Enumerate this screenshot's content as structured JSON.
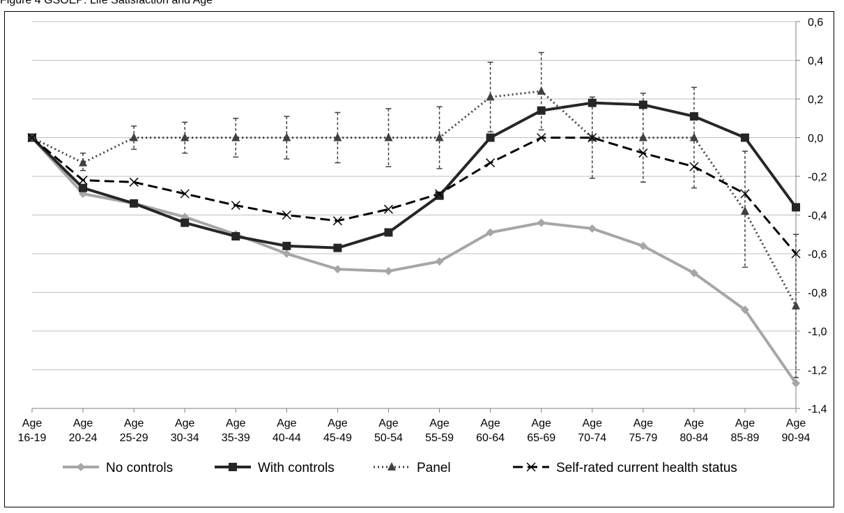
{
  "caption": "Figure 4 GSOEP: Life Satisfaction and Age",
  "chart_data": {
    "type": "line",
    "title": "",
    "xlabel": "",
    "ylabel": "",
    "y_axis_side": "right",
    "ylim": [
      -1.4,
      0.6
    ],
    "yticks": [
      "0,6",
      "0,4",
      "0,2",
      "0,0",
      "-0,2",
      "-0,4",
      "-0,6",
      "-0,8",
      "-1,0",
      "-1,2",
      "-1,4"
    ],
    "ytick_values": [
      0.6,
      0.4,
      0.2,
      0.0,
      -0.2,
      -0.4,
      -0.6,
      -0.8,
      -1.0,
      -1.2,
      -1.4
    ],
    "grid": true,
    "legend_position": "bottom",
    "categories": [
      [
        "Age",
        "16-19"
      ],
      [
        "Age",
        "20-24"
      ],
      [
        "Age",
        "25-29"
      ],
      [
        "Age",
        "30-34"
      ],
      [
        "Age",
        "35-39"
      ],
      [
        "Age",
        "40-44"
      ],
      [
        "Age",
        "45-49"
      ],
      [
        "Age",
        "50-54"
      ],
      [
        "Age",
        "55-59"
      ],
      [
        "Age",
        "60-64"
      ],
      [
        "Age",
        "65-69"
      ],
      [
        "Age",
        "70-74"
      ],
      [
        "Age",
        "75-79"
      ],
      [
        "Age",
        "80-84"
      ],
      [
        "Age",
        "85-89"
      ],
      [
        "Age",
        "90-94"
      ]
    ],
    "series": [
      {
        "name": "No controls",
        "marker": "diamond",
        "color": "#a6a6a6",
        "dash": "solid",
        "values": [
          0,
          -0.29,
          -0.34,
          -0.41,
          -0.5,
          -0.6,
          -0.68,
          -0.69,
          -0.64,
          -0.49,
          -0.44,
          -0.47,
          -0.56,
          -0.7,
          -0.89,
          -1.27
        ]
      },
      {
        "name": "With controls",
        "marker": "square",
        "color": "#262626",
        "dash": "solid",
        "values": [
          0,
          -0.26,
          -0.34,
          -0.44,
          -0.51,
          -0.56,
          -0.57,
          -0.49,
          -0.3,
          0,
          0.14,
          0.18,
          0.17,
          0.11,
          0,
          -0.36
        ]
      },
      {
        "name": "Panel",
        "marker": "triangle",
        "color": "#404040",
        "dash": "dotted",
        "values": [
          0,
          -0.13,
          0,
          0,
          0,
          0,
          0,
          0,
          0,
          0.21,
          0.24,
          0,
          0,
          0,
          -0.38,
          -0.87
        ],
        "error_high": [
          0,
          -0.08,
          0.06,
          0.08,
          0.1,
          0.11,
          0.13,
          0.15,
          0.16,
          0.39,
          0.44,
          0.21,
          0.23,
          0.26,
          -0.07,
          -0.5
        ],
        "error_low": [
          0,
          -0.17,
          -0.06,
          -0.08,
          -0.1,
          -0.11,
          -0.13,
          -0.15,
          -0.16,
          0.03,
          0.04,
          -0.21,
          -0.23,
          -0.26,
          -0.67,
          -1.24
        ]
      },
      {
        "name": "Self-rated current health status",
        "marker": "x",
        "color": "#000000",
        "dash": "dashed",
        "values": [
          0,
          -0.22,
          -0.23,
          -0.29,
          -0.35,
          -0.4,
          -0.43,
          -0.37,
          -0.29,
          -0.13,
          0,
          0,
          -0.08,
          -0.15,
          -0.29,
          -0.6
        ]
      }
    ]
  }
}
